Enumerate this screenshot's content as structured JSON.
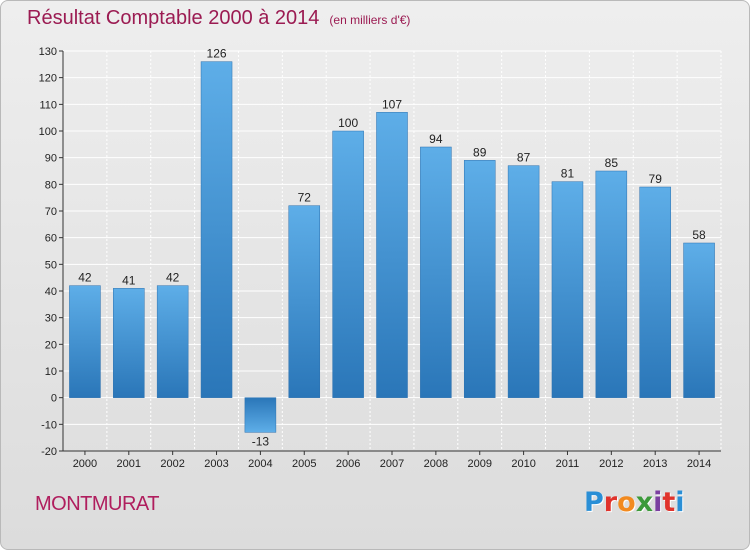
{
  "header": {
    "title": "Résultat Comptable 2000 à 2014",
    "unit": "(en milliers d'€)"
  },
  "footer": {
    "commune": "MONTMURAT",
    "logo_letters": [
      "P",
      "r",
      "o",
      "x",
      "i",
      "t",
      "i"
    ],
    "logo_colors": [
      "#2a8fd6",
      "#e0332c",
      "#f28a1f",
      "#3c9a3a",
      "#7b3fa0",
      "#e0332c",
      "#2a8fd6"
    ]
  },
  "chart_data": {
    "type": "bar",
    "title": "Résultat Comptable 2000 à 2014",
    "ylabel": "(en milliers d'€)",
    "xlabel": "",
    "categories": [
      "2000",
      "2001",
      "2002",
      "2003",
      "2004",
      "2005",
      "2006",
      "2007",
      "2008",
      "2009",
      "2010",
      "2011",
      "2012",
      "2013",
      "2014"
    ],
    "values": [
      42,
      41,
      42,
      126,
      -13,
      72,
      100,
      107,
      94,
      89,
      87,
      81,
      85,
      79,
      58
    ],
    "ylim": [
      -20,
      130
    ],
    "yticks": [
      -20,
      -10,
      0,
      10,
      20,
      30,
      40,
      50,
      60,
      70,
      80,
      90,
      100,
      110,
      120,
      130
    ],
    "grid": true,
    "bar_color": "#3d8fd4"
  }
}
